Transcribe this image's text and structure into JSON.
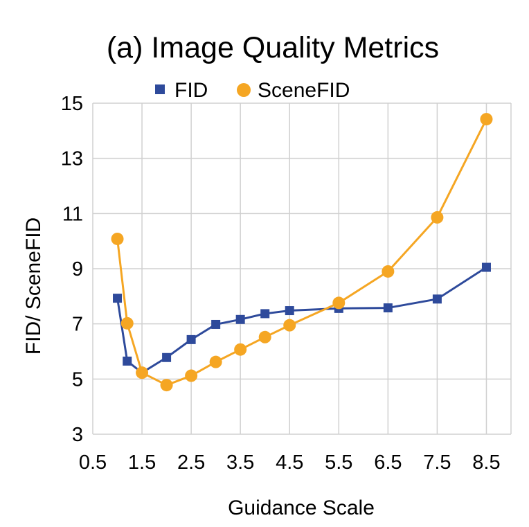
{
  "chart_data": {
    "type": "line",
    "title": "(a) Image Quality Metrics",
    "xlabel": "Guidance Scale",
    "ylabel": "FID/ SceneFID",
    "xlim": [
      0.5,
      9.0
    ],
    "ylim": [
      3,
      15
    ],
    "x_ticks": [
      "0.5",
      "1.5",
      "2.5",
      "3.5",
      "4.5",
      "5.5",
      "6.5",
      "7.5",
      "8.5"
    ],
    "y_ticks": [
      "3",
      "5",
      "7",
      "9",
      "11",
      "13",
      "15"
    ],
    "x_tick_values": [
      0.5,
      1.5,
      2.5,
      3.5,
      4.5,
      5.5,
      6.5,
      7.5,
      8.5
    ],
    "y_tick_values": [
      3,
      5,
      7,
      9,
      11,
      13,
      15
    ],
    "grid": true,
    "legend_position": "top-center",
    "series": [
      {
        "name": "FID",
        "color": "#2E4A9B",
        "marker": "square",
        "x": [
          1.0,
          1.2,
          1.5,
          2.0,
          2.5,
          3.0,
          3.5,
          4.0,
          4.5,
          5.5,
          6.5,
          7.5,
          8.5
        ],
        "values": [
          7.93,
          5.65,
          5.23,
          5.78,
          6.43,
          6.98,
          7.16,
          7.37,
          7.48,
          7.56,
          7.58,
          7.9,
          9.05
        ]
      },
      {
        "name": "SceneFID",
        "color": "#F5A623",
        "marker": "circle",
        "x": [
          1.0,
          1.2,
          1.5,
          2.0,
          2.5,
          3.0,
          3.5,
          4.0,
          4.5,
          5.5,
          6.5,
          7.5,
          8.5
        ],
        "values": [
          10.08,
          7.02,
          5.23,
          4.78,
          5.12,
          5.62,
          6.07,
          6.52,
          6.95,
          7.76,
          8.9,
          10.86,
          14.42
        ]
      }
    ]
  }
}
